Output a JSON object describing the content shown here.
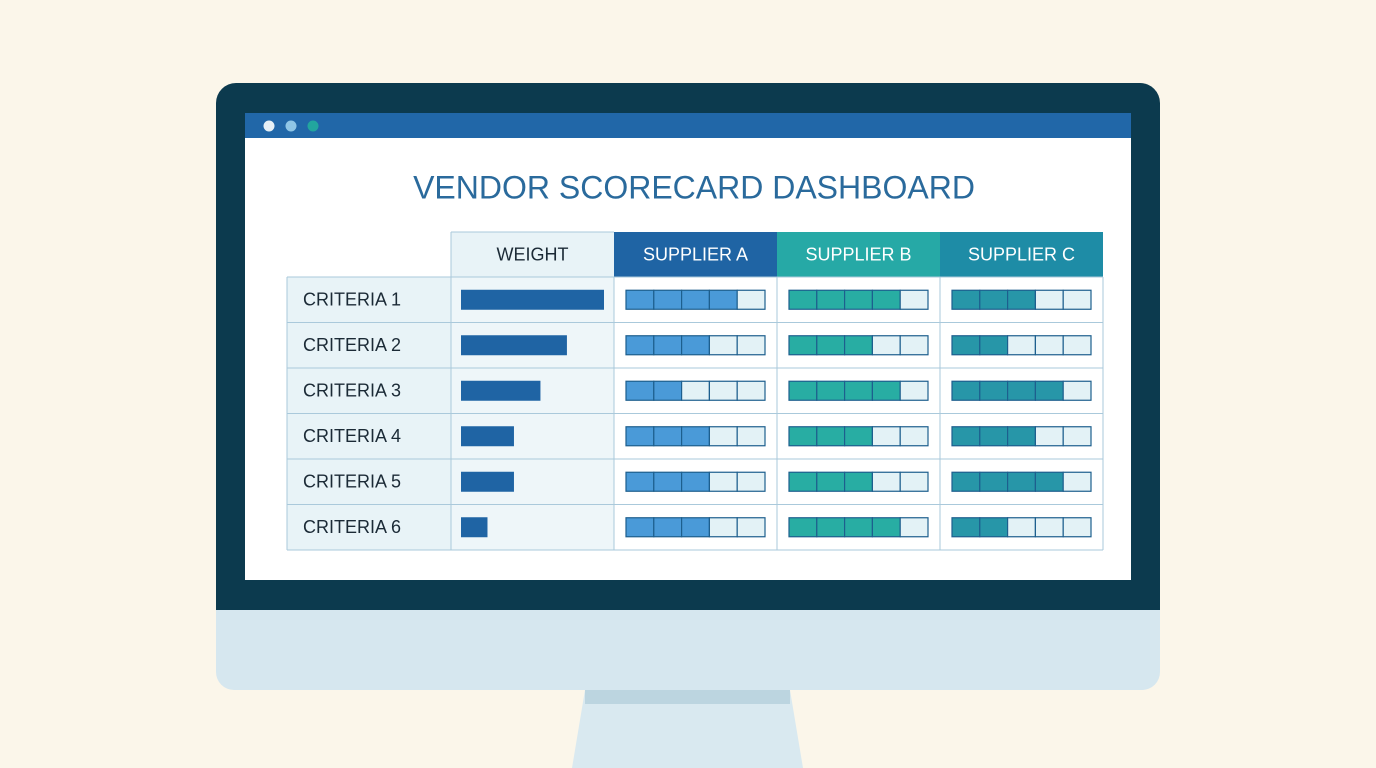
{
  "title": "VENDOR SCORECARD DASHBOARD",
  "table": {
    "rows": [
      "CRITERIA 1",
      "CRITERIA 2",
      "CRITERIA 3",
      "CRITERIA 4",
      "CRITERIA 5",
      "CRITERIA 6"
    ],
    "weight": {
      "name": "WEIGHT",
      "color": "#1f64a4",
      "values": [
        27,
        20,
        15,
        10,
        10,
        5
      ]
    },
    "score_range": [
      0,
      5
    ],
    "suppliers": [
      {
        "name": "SUPPLIER A",
        "header_color": "#1f64a4",
        "fill_color": "#4a9ad8",
        "scores": [
          4,
          3,
          2,
          3,
          3,
          3
        ]
      },
      {
        "name": "SUPPLIER B",
        "header_color": "#26a9a6",
        "fill_color": "#28ada3",
        "scores": [
          4,
          3,
          4,
          3,
          3,
          4
        ]
      },
      {
        "name": "SUPPLIER C",
        "header_color": "#1e8ca6",
        "fill_color": "#2796a8",
        "scores": [
          3,
          2,
          4,
          3,
          4,
          2
        ]
      }
    ]
  }
}
